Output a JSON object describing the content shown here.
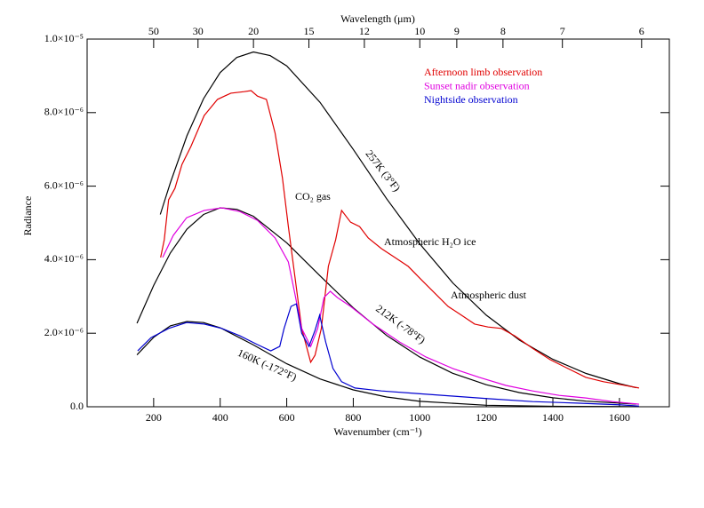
{
  "chart_data": {
    "type": "line",
    "xlabel": "Wavenumber (cm⁻¹)",
    "ylabel": "Radiance",
    "x2label": "Wavelength (μm)",
    "xlim": [
      0,
      1750
    ],
    "ylim": [
      0,
      1e-05
    ],
    "xticks": [
      200,
      400,
      600,
      800,
      1000,
      1200,
      1400,
      1600
    ],
    "yticks": [
      {
        "value": 0,
        "label": "0.0"
      },
      {
        "value": 2e-06,
        "label": "2.0×10⁻⁶"
      },
      {
        "value": 4e-06,
        "label": "4.0×10⁻⁶"
      },
      {
        "value": 6e-06,
        "label": "6.0×10⁻⁶"
      },
      {
        "value": 8e-06,
        "label": "8.0×10⁻⁶"
      },
      {
        "value": 1e-05,
        "label": "1.0×10⁻⁵"
      }
    ],
    "x2ticks": [
      50,
      30,
      20,
      15,
      12,
      10,
      9,
      8,
      7,
      6
    ],
    "legend": "upper right",
    "series": [
      {
        "name": "Afternoon limb observation",
        "color": "#e00000",
        "x": [
          221,
          232,
          245,
          264,
          285,
          312,
          352,
          392,
          432,
          472,
          493,
          512,
          539,
          565,
          587,
          605,
          624,
          645,
          672,
          685,
          704,
          725,
          747,
          765,
          792,
          819,
          845,
          885,
          925,
          965,
          1005,
          1045,
          1085,
          1125,
          1165,
          1205,
          1245,
          1285,
          1339,
          1392,
          1445,
          1499,
          1552,
          1605,
          1659
        ],
        "values": [
          4.06e-06,
          4.54e-06,
          5.63e-06,
          5.94e-06,
          6.59e-06,
          7.08e-06,
          7.92e-06,
          8.36e-06,
          8.53e-06,
          8.57e-06,
          8.6e-06,
          8.45e-06,
          8.36e-06,
          7.44e-06,
          6.23e-06,
          4.9e-06,
          3.57e-06,
          2.13e-06,
          1.21e-06,
          1.4e-06,
          2.13e-06,
          3.82e-06,
          4.54e-06,
          5.34e-06,
          5.02e-06,
          4.9e-06,
          4.59e-06,
          4.3e-06,
          4.06e-06,
          3.82e-06,
          3.45e-06,
          3.09e-06,
          2.73e-06,
          2.49e-06,
          2.25e-06,
          2.17e-06,
          2.13e-06,
          1.93e-06,
          1.59e-06,
          1.28e-06,
          1.04e-06,
          8e-07,
          6.8e-07,
          6e-07,
          5.1e-07
        ]
      },
      {
        "name": "Sunset nadir observation",
        "color": "#e000e0",
        "x": [
          227,
          259,
          299,
          352,
          405,
          459,
          512,
          565,
          605,
          624,
          645,
          672,
          693,
          712,
          731,
          752,
          792,
          859,
          939,
          1019,
          1099,
          1179,
          1259,
          1339,
          1419,
          1499,
          1579,
          1659
        ],
        "values": [
          4.06e-06,
          4.66e-06,
          5.14e-06,
          5.34e-06,
          5.41e-06,
          5.31e-06,
          5.07e-06,
          4.59e-06,
          3.94e-06,
          3.09e-06,
          2.13e-06,
          1.64e-06,
          2.13e-06,
          2.97e-06,
          3.14e-06,
          2.97e-06,
          2.73e-06,
          2.25e-06,
          1.76e-06,
          1.35e-06,
          1.04e-06,
          8e-07,
          5.8e-07,
          4.3e-07,
          3.1e-07,
          2.4e-07,
          1.4e-07,
          7e-08
        ]
      },
      {
        "name": "Nightside observation",
        "color": "#0000d0",
        "x": [
          152,
          192,
          245,
          299,
          352,
          405,
          459,
          512,
          552,
          579,
          592,
          613,
          629,
          645,
          667,
          685,
          699,
          717,
          739,
          765,
          805,
          885,
          992,
          1099,
          1205,
          1339,
          1472,
          1605,
          1659
        ],
        "values": [
          1.52e-06,
          1.88e-06,
          2.13e-06,
          2.29e-06,
          2.25e-06,
          2.13e-06,
          1.93e-06,
          1.69e-06,
          1.52e-06,
          1.64e-06,
          2.13e-06,
          2.73e-06,
          2.8e-06,
          2e-06,
          1.64e-06,
          2.08e-06,
          2.49e-06,
          1.76e-06,
          1.04e-06,
          6.8e-07,
          5.1e-07,
          4.3e-07,
          3.6e-07,
          2.9e-07,
          2.2e-07,
          1.4e-07,
          1e-07,
          5e-08,
          2e-08
        ]
      }
    ],
    "reference_curves": [
      {
        "label": "257K (3°F)",
        "color": "#000000",
        "x": [
          220,
          250,
          300,
          350,
          400,
          450,
          500,
          550,
          600,
          700,
          800,
          900,
          1000,
          1100,
          1200,
          1300,
          1400,
          1500,
          1600,
          1650
        ],
        "values": [
          5.23e-06,
          6.09e-06,
          7.37e-06,
          8.38e-06,
          9.09e-06,
          9.5e-06,
          9.65e-06,
          9.55e-06,
          9.27e-06,
          8.28e-06,
          7e-06,
          5.66e-06,
          4.43e-06,
          3.36e-06,
          2.49e-06,
          1.81e-06,
          1.29e-06,
          9.06e-07,
          6.28e-07,
          5.2e-07
        ]
      },
      {
        "label": "212K (-78°F)",
        "color": "#000000",
        "x": [
          150,
          200,
          250,
          300,
          350,
          400,
          450,
          500,
          600,
          700,
          800,
          900,
          1000,
          1100,
          1200,
          1300,
          1400,
          1500,
          1650
        ],
        "values": [
          2.27e-06,
          3.3e-06,
          4.18e-06,
          4.83e-06,
          5.23e-06,
          5.41e-06,
          5.37e-06,
          5.18e-06,
          4.46e-06,
          3.56e-06,
          2.69e-06,
          1.94e-06,
          1.35e-06,
          9.07e-07,
          5.98e-07,
          3.85e-07,
          2.44e-07,
          1.52e-07,
          7.3e-08
        ]
      },
      {
        "label": "160K (-172°F)",
        "color": "#000000",
        "x": [
          150,
          200,
          250,
          300,
          350,
          400,
          500,
          600,
          700,
          800,
          900,
          1000,
          1200,
          1400,
          1650
        ],
        "values": [
          1.41e-06,
          1.89e-06,
          2.2e-06,
          2.32e-06,
          2.29e-06,
          2.15e-06,
          1.68e-06,
          1.17e-06,
          7.56e-07,
          4.58e-07,
          2.65e-07,
          1.48e-07,
          4.2e-08,
          1.1e-08,
          2e-09
        ]
      }
    ],
    "annotations": [
      "CO₂ gas",
      "Atmospheric H₂O ice",
      "Atmospheric dust"
    ]
  }
}
